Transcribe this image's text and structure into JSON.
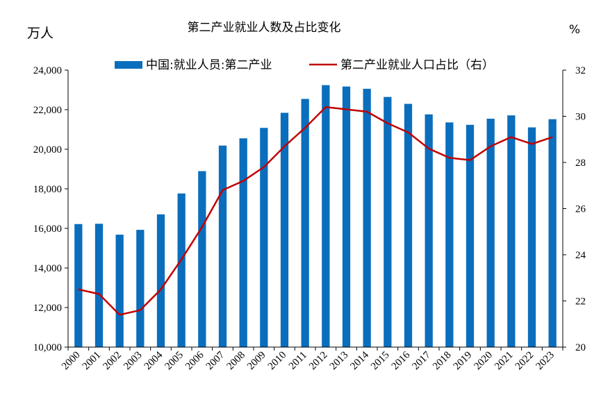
{
  "chart_data": {
    "type": "bar+line",
    "title": "第二产业就业人数及占比变化",
    "left_unit": "万人",
    "right_unit": "%",
    "categories": [
      "2000",
      "2001",
      "2002",
      "2003",
      "2004",
      "2005",
      "2006",
      "2007",
      "2008",
      "2009",
      "2010",
      "2011",
      "2012",
      "2013",
      "2014",
      "2015",
      "2016",
      "2017",
      "2018",
      "2019",
      "2020",
      "2021",
      "2022",
      "2023"
    ],
    "series": [
      {
        "name": "中国:就业人员:第二产业",
        "type": "bar",
        "axis": "left",
        "color": "#0a6ebd",
        "values": [
          16219,
          16234,
          15682,
          15927,
          16709,
          17766,
          18894,
          20186,
          20553,
          21080,
          21842,
          22544,
          23241,
          23170,
          23057,
          22644,
          22295,
          21762,
          21356,
          21234,
          21543,
          21712,
          21105,
          21520
        ]
      },
      {
        "name": "第二产业就业人口占比（右）",
        "type": "line",
        "axis": "right",
        "color": "#c00000",
        "values": [
          22.5,
          22.3,
          21.4,
          21.6,
          22.5,
          23.8,
          25.2,
          26.8,
          27.2,
          27.8,
          28.7,
          29.5,
          30.4,
          30.3,
          30.2,
          29.7,
          29.3,
          28.6,
          28.2,
          28.1,
          28.7,
          29.1,
          28.8,
          29.1
        ]
      }
    ],
    "left_axis": {
      "min": 10000,
      "max": 24000,
      "step": 2000,
      "tick_labels": [
        "10,000",
        "12,000",
        "14,000",
        "16,000",
        "18,000",
        "20,000",
        "22,000",
        "24,000"
      ]
    },
    "right_axis": {
      "min": 20,
      "max": 32,
      "step": 2,
      "tick_labels": [
        "20",
        "22",
        "24",
        "26",
        "28",
        "30",
        "32"
      ]
    },
    "grid": false,
    "legend_position": "top-center"
  }
}
